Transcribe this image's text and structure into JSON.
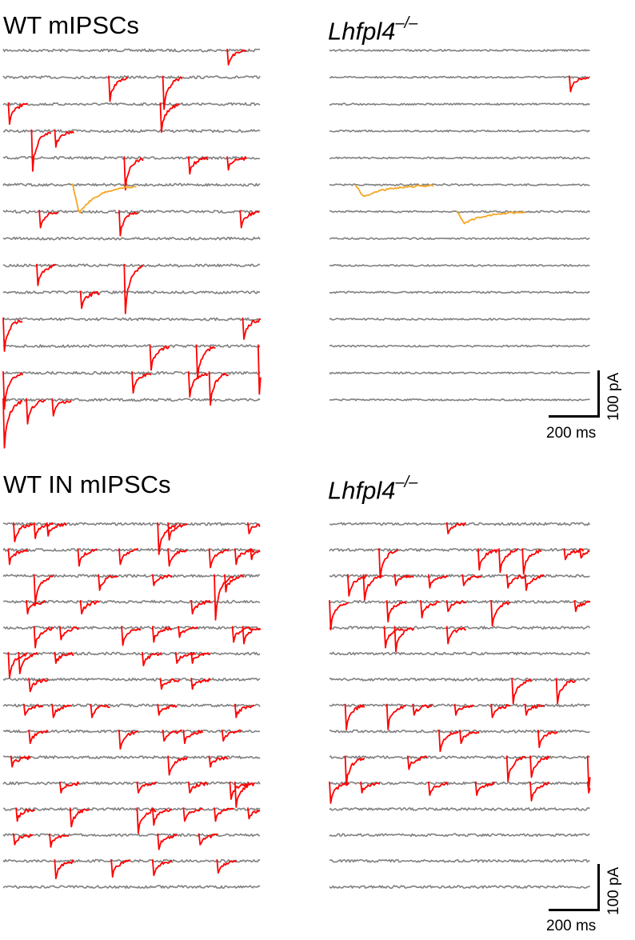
{
  "colors": {
    "baseline": "#808080",
    "event": "#ff0000",
    "highlight": "#f5a623"
  },
  "chart_data": [
    {
      "type": "line",
      "panel": "top-left",
      "title": "WT mIPSCs",
      "trace_count": 14,
      "events": [
        {
          "trace": 1,
          "t": [
            0.87
          ],
          "amp": [
            18
          ]
        },
        {
          "trace": 2,
          "t": [
            0.41,
            0.62
          ],
          "amp": [
            30,
            40
          ]
        },
        {
          "trace": 3,
          "t": [
            0.02,
            0.61
          ],
          "amp": [
            25,
            35
          ]
        },
        {
          "trace": 4,
          "t": [
            0.11,
            0.2
          ],
          "amp": [
            50,
            20
          ]
        },
        {
          "trace": 5,
          "t": [
            0.47,
            0.72,
            0.87
          ],
          "amp": [
            40,
            20,
            15
          ]
        },
        {
          "trace": 7,
          "t": [
            0.14,
            0.45,
            0.92
          ],
          "amp": [
            20,
            30,
            20
          ]
        },
        {
          "trace": 9,
          "t": [
            0.13,
            0.47
          ],
          "amp": [
            25,
            60
          ]
        },
        {
          "trace": 10,
          "t": [
            0.3
          ],
          "amp": [
            20
          ]
        },
        {
          "trace": 11,
          "t": [
            0.0,
            0.93
          ],
          "amp": [
            40,
            25
          ]
        },
        {
          "trace": 12,
          "t": [
            0.57,
            0.75,
            0.99
          ],
          "amp": [
            30,
            40,
            60
          ]
        },
        {
          "trace": 13,
          "t": [
            0.0,
            0.5,
            0.72,
            0.8
          ],
          "amp": [
            45,
            25,
            30,
            40
          ]
        },
        {
          "trace": 14,
          "t": [
            0.0,
            0.09,
            0.19
          ],
          "amp": [
            60,
            30,
            20
          ]
        }
      ],
      "slow": [
        {
          "trace": 6,
          "start": 0.27,
          "end": 0.52,
          "amp": 35
        }
      ]
    },
    {
      "type": "line",
      "panel": "top-right",
      "title": "Lhfpl4",
      "title_superscript": "–/–",
      "trace_count": 14,
      "events": [
        {
          "trace": 2,
          "t": [
            0.92
          ],
          "amp": [
            18
          ]
        }
      ],
      "slow": [
        {
          "trace": 6,
          "start": 0.1,
          "end": 0.4,
          "amp": 15
        },
        {
          "trace": 7,
          "start": 0.49,
          "end": 0.75,
          "amp": 15
        }
      ],
      "scalebar": {
        "time_label": "200 ms",
        "amp_label": "100 pA"
      }
    },
    {
      "type": "line",
      "panel": "bottom-left",
      "title": "WT IN mIPSCs",
      "trace_count": 15,
      "events": [
        {
          "trace": 1,
          "t": [
            0.04,
            0.12,
            0.17,
            0.6,
            0.64,
            0.95
          ],
          "amp": [
            22,
            18,
            15,
            38,
            20,
            12
          ]
        },
        {
          "trace": 2,
          "t": [
            0.02,
            0.29,
            0.45,
            0.64,
            0.8,
            0.9,
            0.96
          ],
          "amp": [
            18,
            20,
            18,
            20,
            22,
            18,
            12
          ]
        },
        {
          "trace": 3,
          "t": [
            0.12,
            0.37,
            0.58,
            0.82,
            0.86
          ],
          "amp": [
            35,
            18,
            12,
            55,
            20
          ]
        },
        {
          "trace": 4,
          "t": [
            0.09,
            0.3,
            0.73
          ],
          "amp": [
            15,
            15,
            15
          ]
        },
        {
          "trace": 5,
          "t": [
            0.12,
            0.22,
            0.46,
            0.58,
            0.68,
            0.89,
            0.93
          ],
          "amp": [
            25,
            15,
            22,
            18,
            12,
            18,
            20
          ]
        },
        {
          "trace": 6,
          "t": [
            0.02,
            0.06,
            0.2,
            0.54,
            0.67,
            0.73
          ],
          "amp": [
            30,
            25,
            12,
            15,
            12,
            12
          ]
        },
        {
          "trace": 7,
          "t": [
            0.1,
            0.61,
            0.73
          ],
          "amp": [
            15,
            12,
            12
          ]
        },
        {
          "trace": 8,
          "t": [
            0.08,
            0.19,
            0.34,
            0.6,
            0.9
          ],
          "amp": [
            12,
            15,
            15,
            12,
            15
          ]
        },
        {
          "trace": 9,
          "t": [
            0.1,
            0.45,
            0.62,
            0.7,
            0.85
          ],
          "amp": [
            15,
            22,
            12,
            15,
            12
          ]
        },
        {
          "trace": 10,
          "t": [
            0.03,
            0.64,
            0.8
          ],
          "amp": [
            12,
            22,
            12
          ]
        },
        {
          "trace": 11,
          "t": [
            0.22,
            0.52,
            0.72,
            0.88,
            0.9
          ],
          "amp": [
            12,
            12,
            12,
            20,
            30
          ]
        },
        {
          "trace": 12,
          "t": [
            0.05,
            0.26,
            0.52,
            0.58,
            0.7,
            0.82,
            0.95
          ],
          "amp": [
            15,
            22,
            30,
            20,
            15,
            15,
            12
          ]
        },
        {
          "trace": 13,
          "t": [
            0.04,
            0.18,
            0.6,
            0.76
          ],
          "amp": [
            12,
            15,
            18,
            12
          ]
        },
        {
          "trace": 14,
          "t": [
            0.2,
            0.42,
            0.58,
            0.83
          ],
          "amp": [
            22,
            20,
            18,
            15
          ]
        }
      ],
      "slow": []
    },
    {
      "type": "line",
      "panel": "bottom-right",
      "title": "Lhfpl4",
      "title_superscript": "–/–",
      "trace_count": 15,
      "events": [
        {
          "trace": 1,
          "t": [
            0.45
          ],
          "amp": [
            12
          ]
        },
        {
          "trace": 2,
          "t": [
            0.19,
            0.57,
            0.65,
            0.74,
            0.9,
            0.96
          ],
          "amp": [
            35,
            25,
            28,
            30,
            12,
            10
          ]
        },
        {
          "trace": 3,
          "t": [
            0.07,
            0.13,
            0.25,
            0.38,
            0.51,
            0.68,
            0.75
          ],
          "amp": [
            25,
            30,
            12,
            15,
            12,
            15,
            18
          ]
        },
        {
          "trace": 4,
          "t": [
            0.0,
            0.22,
            0.35,
            0.45,
            0.62,
            0.94
          ],
          "amp": [
            35,
            25,
            20,
            12,
            30,
            12
          ]
        },
        {
          "trace": 5,
          "t": [
            0.21,
            0.25,
            0.45
          ],
          "amp": [
            25,
            30,
            20
          ]
        },
        {
          "trace": 6,
          "t": [],
          "amp": []
        },
        {
          "trace": 7,
          "t": [
            0.7,
            0.87
          ],
          "amp": [
            30,
            30
          ]
        },
        {
          "trace": 8,
          "t": [
            0.06,
            0.22,
            0.32,
            0.48,
            0.62,
            0.75
          ],
          "amp": [
            30,
            30,
            12,
            12,
            15,
            12
          ]
        },
        {
          "trace": 9,
          "t": [
            0.42,
            0.5,
            0.8
          ],
          "amp": [
            25,
            15,
            20
          ]
        },
        {
          "trace": 10,
          "t": [
            0.06,
            0.3,
            0.68,
            0.77,
            0.99
          ],
          "amp": [
            35,
            15,
            30,
            25,
            40
          ]
        },
        {
          "trace": 11,
          "t": [
            0.0,
            0.12,
            0.38,
            0.56,
            0.77,
            0.99
          ],
          "amp": [
            25,
            12,
            15,
            15,
            22,
            12
          ]
        }
      ],
      "slow": [],
      "scalebar": {
        "time_label": "200 ms",
        "amp_label": "100 pA"
      }
    }
  ]
}
